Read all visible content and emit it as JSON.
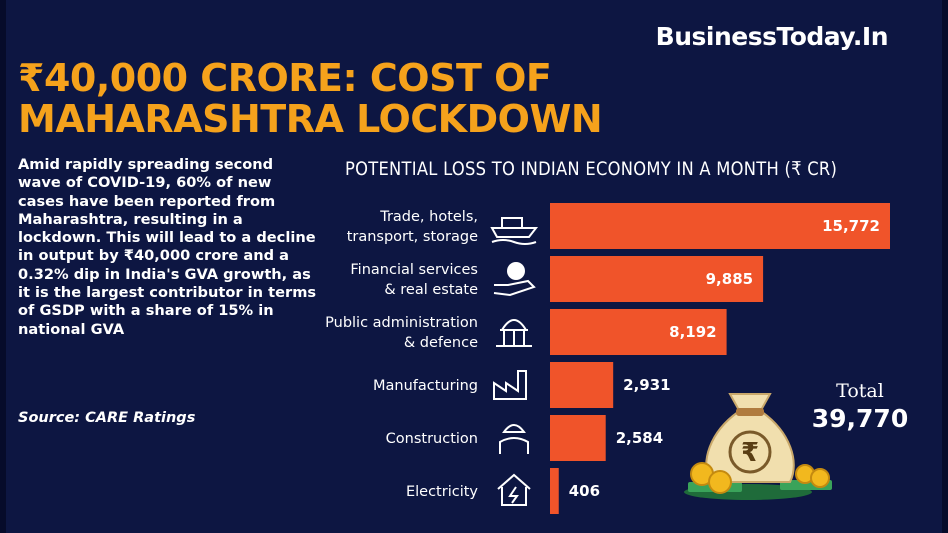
{
  "brand": "BusinessToday.In",
  "headline": {
    "line1": "₹40,000 CRORE: COST OF",
    "line2": "MAHARASHTRA LOCKDOWN"
  },
  "body": "Amid rapidly spreading second wave of COVID-19, 60% of new cases have been reported from Maharashtra, resulting in a lockdown. This will lead to a decline in output by ₹40,000 crore and a 0.32% dip in India's GVA growth, as it is the largest contributor in terms of GSDP with a share of 15% in national GVA",
  "source": "Source: CARE Ratings",
  "total": {
    "label": "Total",
    "value": "39,770"
  },
  "colors": {
    "background": "#0d1642",
    "accent": "#f5a21c",
    "bar": "#f0542a"
  },
  "chart_data": {
    "type": "bar",
    "orientation": "horizontal",
    "title": "POTENTIAL LOSS TO INDIAN ECONOMY IN A MONTH (₹ CR)",
    "categories": [
      [
        "Trade, hotels,",
        "transport, storage"
      ],
      [
        "Financial services",
        "& real estate"
      ],
      [
        "Public administration",
        "& defence"
      ],
      [
        "Manufacturing"
      ],
      [
        "Construction"
      ],
      [
        "Electricity"
      ]
    ],
    "icons": [
      "ship-icon",
      "money-hand-icon",
      "government-building-icon",
      "factory-icon",
      "worker-icon",
      "house-power-icon"
    ],
    "values": [
      15772,
      9885,
      8192,
      2931,
      2584,
      406
    ],
    "value_labels": [
      "15,772",
      "9,885",
      "8,192",
      "2,931",
      "2,584",
      "406"
    ],
    "xlim": [
      0,
      15772
    ],
    "grid": false,
    "legend": "none"
  }
}
